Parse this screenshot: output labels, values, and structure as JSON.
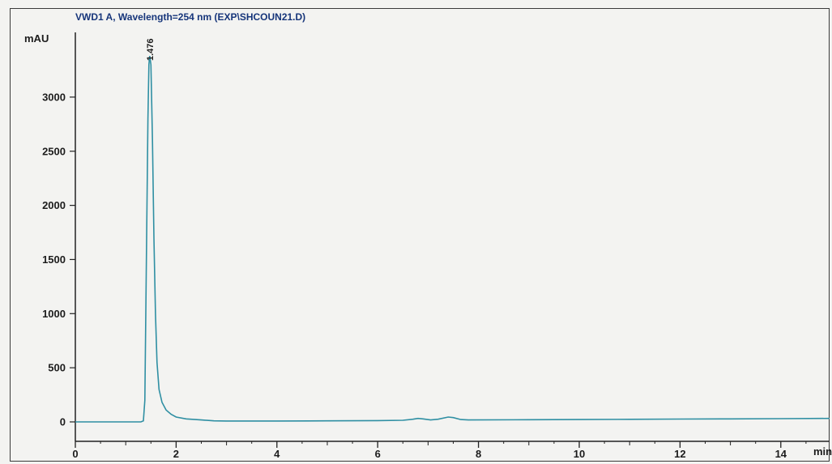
{
  "chart_data": {
    "type": "line",
    "title": "VWD1 A, Wavelength=254 nm (EXP\\SHCOUN21.D)",
    "xlabel": "min",
    "ylabel": "mAU",
    "xlim": [
      0,
      15.2
    ],
    "ylim": [
      -150,
      3550
    ],
    "x_ticks": [
      0,
      2,
      4,
      6,
      8,
      10,
      12,
      14
    ],
    "y_ticks": [
      0,
      500,
      1000,
      1500,
      2000,
      2500,
      3000
    ],
    "grid": false,
    "peak_labels": [
      {
        "time": 1.476,
        "text": "1.476"
      }
    ],
    "series": [
      {
        "color": "#2f8fa3",
        "points": [
          [
            0,
            0
          ],
          [
            1.3,
            0
          ],
          [
            1.35,
            10
          ],
          [
            1.38,
            200
          ],
          [
            1.41,
            1500
          ],
          [
            1.44,
            2800
          ],
          [
            1.46,
            3300
          ],
          [
            1.476,
            3380
          ],
          [
            1.5,
            3300
          ],
          [
            1.53,
            2600
          ],
          [
            1.56,
            1700
          ],
          [
            1.59,
            1000
          ],
          [
            1.62,
            550
          ],
          [
            1.66,
            300
          ],
          [
            1.72,
            180
          ],
          [
            1.8,
            110
          ],
          [
            1.9,
            70
          ],
          [
            2.0,
            45
          ],
          [
            2.2,
            28
          ],
          [
            2.5,
            18
          ],
          [
            2.75,
            10
          ],
          [
            3.0,
            8
          ],
          [
            4.0,
            8
          ],
          [
            5.0,
            10
          ],
          [
            6.0,
            12
          ],
          [
            6.5,
            15
          ],
          [
            6.7,
            25
          ],
          [
            6.8,
            32
          ],
          [
            6.9,
            28
          ],
          [
            7.05,
            18
          ],
          [
            7.2,
            25
          ],
          [
            7.4,
            45
          ],
          [
            7.5,
            40
          ],
          [
            7.65,
            22
          ],
          [
            7.8,
            18
          ],
          [
            9.0,
            20
          ],
          [
            10.0,
            22
          ],
          [
            11.0,
            24
          ],
          [
            12.0,
            26
          ],
          [
            13.0,
            28
          ],
          [
            14.0,
            30
          ],
          [
            15.2,
            32
          ]
        ]
      }
    ]
  }
}
